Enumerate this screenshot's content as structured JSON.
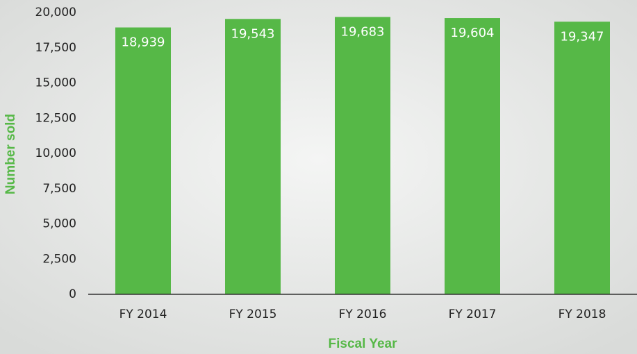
{
  "chart_data": {
    "type": "bar",
    "categories": [
      "FY 2014",
      "FY 2015",
      "FY 2016",
      "FY 2017",
      "FY 2018"
    ],
    "values": [
      18939,
      19543,
      19683,
      19604,
      19347
    ],
    "value_labels": [
      "18,939",
      "19,543",
      "19,683",
      "19,604",
      "19,347"
    ],
    "color": "#56b847",
    "x_label": "Fiscal Year",
    "y_label": "Number sold",
    "ylim": [
      0,
      20000
    ],
    "yticks": [
      0,
      {
        "value": 2500,
        "label": "2,500"
      },
      {
        "value": 5000,
        "label": "5,000"
      },
      {
        "value": 7500,
        "label": "7,500"
      },
      {
        "value": 10000,
        "label": "10,000"
      },
      {
        "value": 12500,
        "label": "12,500"
      },
      {
        "value": 15000,
        "label": "15,000"
      },
      {
        "value": 17500,
        "label": "17,500"
      },
      {
        "value": 20000,
        "label": "20,000"
      }
    ],
    "grid": false
  }
}
